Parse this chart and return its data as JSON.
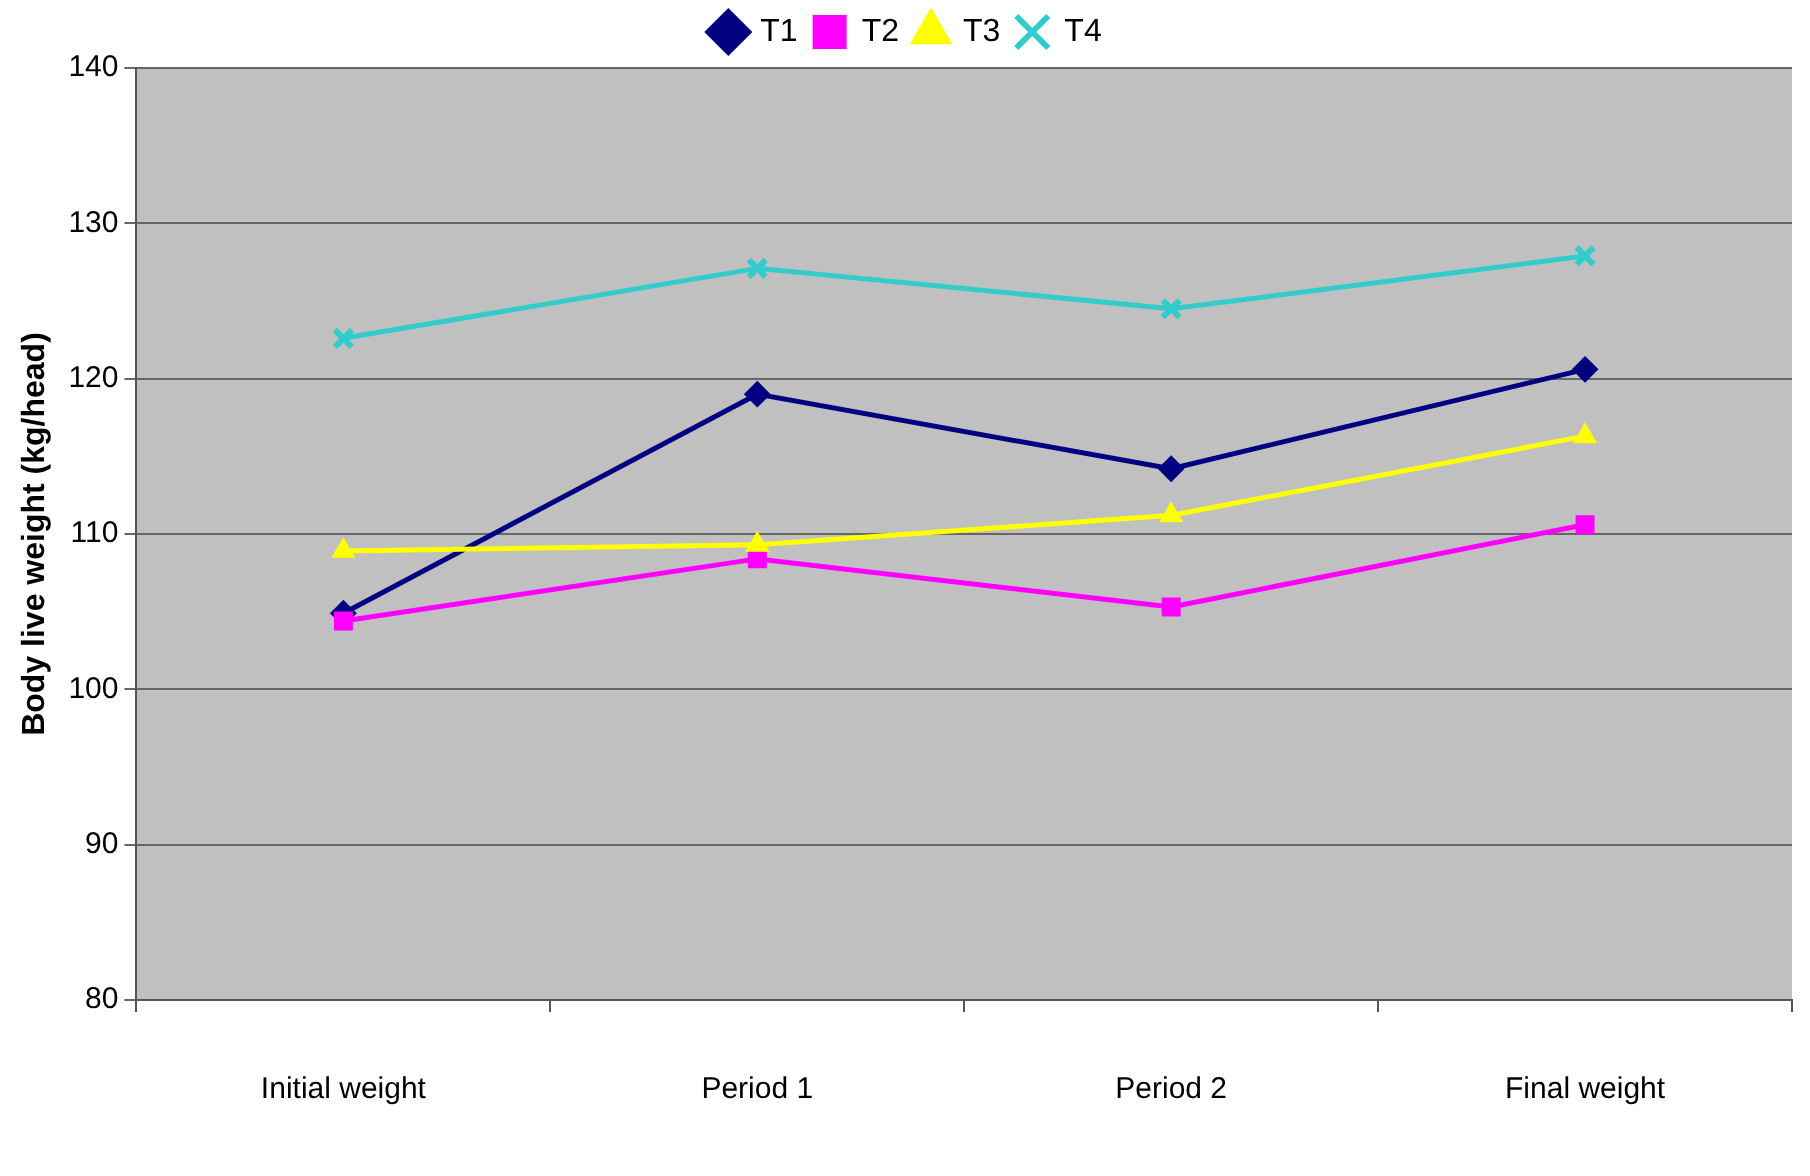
{
  "chart_data": {
    "type": "line",
    "ylabel": "Body live weight (kg/head)",
    "categories": [
      "Initial weight",
      "Period 1",
      "Period 2",
      "Final weight"
    ],
    "ylim": [
      80,
      140
    ],
    "yticks": [
      80,
      90,
      100,
      110,
      120,
      130,
      140
    ],
    "grid": "y",
    "legend": "top",
    "line_style": "solid",
    "series": [
      {
        "name": "T1",
        "color": "#000080",
        "marker": "diamond",
        "values": [
          104.9,
          119,
          114.2,
          120.6
        ]
      },
      {
        "name": "T2",
        "color": "#ff00ff",
        "marker": "square",
        "values": [
          104.4,
          108.4,
          105.3,
          110.6
        ]
      },
      {
        "name": "T3",
        "color": "#ffff00",
        "marker": "triangle",
        "values": [
          108.9,
          109.3,
          111.2,
          116.3
        ]
      },
      {
        "name": "T4",
        "color": "#33cccc",
        "marker": "cross",
        "values": [
          122.6,
          127.1,
          124.5,
          127.9
        ]
      }
    ]
  }
}
